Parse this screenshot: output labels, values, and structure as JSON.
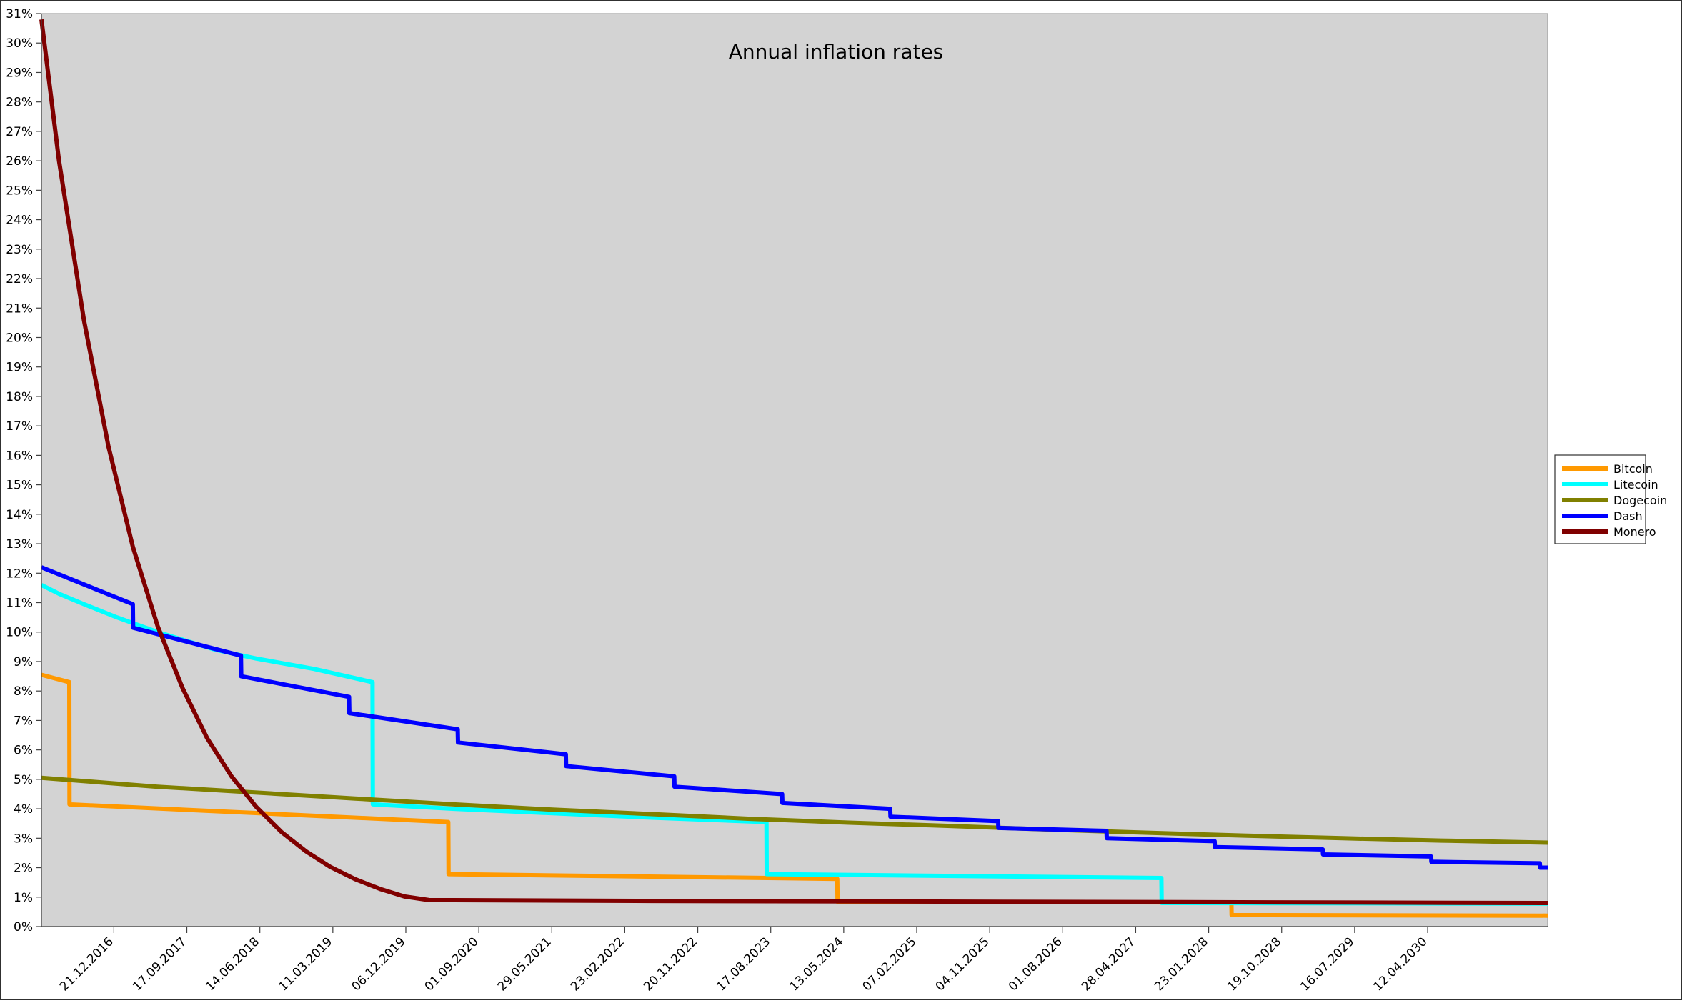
{
  "chart_data": {
    "type": "line",
    "title": "Annual inflation rates",
    "xlabel": "",
    "ylabel": "",
    "x_axis_type": "date",
    "x_range": [
      "2016-03-28",
      "2031-06-30"
    ],
    "ylim": [
      0,
      31
    ],
    "y_ticks": [
      0,
      1,
      2,
      3,
      4,
      5,
      6,
      7,
      8,
      9,
      10,
      11,
      12,
      13,
      14,
      15,
      16,
      17,
      18,
      19,
      20,
      21,
      22,
      23,
      24,
      25,
      26,
      27,
      28,
      29,
      30,
      31
    ],
    "y_tick_suffix": "%",
    "x_ticks": [
      {
        "date": "2016-12-21",
        "label": "21.12.2016"
      },
      {
        "date": "2017-09-17",
        "label": "17.09.2017"
      },
      {
        "date": "2018-06-14",
        "label": "14.06.2018"
      },
      {
        "date": "2019-03-11",
        "label": "11.03.2019"
      },
      {
        "date": "2019-12-06",
        "label": "06.12.2019"
      },
      {
        "date": "2020-09-01",
        "label": "01.09.2020"
      },
      {
        "date": "2021-05-29",
        "label": "29.05.2021"
      },
      {
        "date": "2022-02-23",
        "label": "23.02.2022"
      },
      {
        "date": "2022-11-20",
        "label": "20.11.2022"
      },
      {
        "date": "2023-08-17",
        "label": "17.08.2023"
      },
      {
        "date": "2024-05-13",
        "label": "13.05.2024"
      },
      {
        "date": "2025-02-07",
        "label": "07.02.2025"
      },
      {
        "date": "2025-11-04",
        "label": "04.11.2025"
      },
      {
        "date": "2026-08-01",
        "label": "01.08.2026"
      },
      {
        "date": "2027-04-28",
        "label": "28.04.2027"
      },
      {
        "date": "2028-01-23",
        "label": "23.01.2028"
      },
      {
        "date": "2028-10-19",
        "label": "19.10.2028"
      },
      {
        "date": "2029-07-16",
        "label": "16.07.2029"
      },
      {
        "date": "2030-04-12",
        "label": "12.04.2030"
      }
    ],
    "grid": false,
    "legend_position": "right",
    "plot_background": "#d3d3d3",
    "series": [
      {
        "name": "Bitcoin",
        "color": "#ff9900",
        "points": [
          [
            "2016-03-28",
            8.55
          ],
          [
            "2016-07-09",
            8.3
          ],
          [
            "2016-07-10",
            4.15
          ],
          [
            "2020-05-11",
            3.55
          ],
          [
            "2020-05-12",
            1.78
          ],
          [
            "2024-04-19",
            1.62
          ],
          [
            "2024-04-20",
            0.84
          ],
          [
            "2028-04-16",
            0.82
          ],
          [
            "2028-04-17",
            0.39
          ],
          [
            "2031-06-30",
            0.37
          ]
        ]
      },
      {
        "name": "Litecoin",
        "color": "#00ffff",
        "points": [
          [
            "2016-03-28",
            11.6
          ],
          [
            "2016-06-01",
            11.3
          ],
          [
            "2016-09-01",
            10.95
          ],
          [
            "2017-01-01",
            10.5
          ],
          [
            "2017-06-01",
            10.0
          ],
          [
            "2018-01-01",
            9.4
          ],
          [
            "2018-06-01",
            9.1
          ],
          [
            "2019-01-01",
            8.75
          ],
          [
            "2019-08-05",
            8.3
          ],
          [
            "2019-08-06",
            4.15
          ],
          [
            "2020-06-01",
            4.0
          ],
          [
            "2021-06-01",
            3.85
          ],
          [
            "2022-06-01",
            3.7
          ],
          [
            "2023-08-01",
            3.55
          ],
          [
            "2023-08-02",
            1.78
          ],
          [
            "2027-08-01",
            1.65
          ],
          [
            "2027-08-02",
            0.8
          ],
          [
            "2031-06-30",
            0.78
          ]
        ]
      },
      {
        "name": "Dogecoin",
        "color": "#808000",
        "points": [
          [
            "2016-03-28",
            5.05
          ],
          [
            "2017-06-01",
            4.75
          ],
          [
            "2018-06-01",
            4.55
          ],
          [
            "2019-06-01",
            4.35
          ],
          [
            "2020-06-01",
            4.15
          ],
          [
            "2021-06-01",
            3.97
          ],
          [
            "2022-06-01",
            3.82
          ],
          [
            "2023-06-01",
            3.66
          ],
          [
            "2024-06-01",
            3.53
          ],
          [
            "2025-06-01",
            3.42
          ],
          [
            "2026-06-01",
            3.3
          ],
          [
            "2027-06-01",
            3.19
          ],
          [
            "2028-06-01",
            3.09
          ],
          [
            "2029-06-01",
            3.0
          ],
          [
            "2030-06-01",
            2.92
          ],
          [
            "2031-06-30",
            2.85
          ]
        ]
      },
      {
        "name": "Dash",
        "color": "#0000ff",
        "points": [
          [
            "2016-03-28",
            12.2
          ],
          [
            "2017-03-01",
            10.95
          ],
          [
            "2017-03-02",
            10.15
          ],
          [
            "2018-04-05",
            9.2
          ],
          [
            "2018-04-06",
            8.5
          ],
          [
            "2019-05-10",
            7.8
          ],
          [
            "2019-05-11",
            7.25
          ],
          [
            "2020-06-15",
            6.7
          ],
          [
            "2020-06-16",
            6.25
          ],
          [
            "2021-07-20",
            5.85
          ],
          [
            "2021-07-21",
            5.45
          ],
          [
            "2022-08-25",
            5.1
          ],
          [
            "2022-08-26",
            4.75
          ],
          [
            "2023-09-28",
            4.5
          ],
          [
            "2023-09-29",
            4.2
          ],
          [
            "2024-11-01",
            4.0
          ],
          [
            "2024-11-02",
            3.73
          ],
          [
            "2025-12-05",
            3.58
          ],
          [
            "2025-12-06",
            3.35
          ],
          [
            "2027-01-10",
            3.25
          ],
          [
            "2027-01-11",
            3.0
          ],
          [
            "2028-02-14",
            2.9
          ],
          [
            "2028-02-15",
            2.7
          ],
          [
            "2029-03-20",
            2.62
          ],
          [
            "2029-03-21",
            2.45
          ],
          [
            "2030-04-25",
            2.38
          ],
          [
            "2030-04-26",
            2.2
          ],
          [
            "2031-06-01",
            2.15
          ],
          [
            "2031-06-02",
            2.0
          ],
          [
            "2031-06-30",
            2.0
          ]
        ]
      },
      {
        "name": "Monero",
        "color": "#800000",
        "points": [
          [
            "2016-03-28",
            30.8
          ],
          [
            "2016-06-01",
            26.0
          ],
          [
            "2016-09-01",
            20.6
          ],
          [
            "2016-12-01",
            16.3
          ],
          [
            "2017-03-01",
            12.9
          ],
          [
            "2017-06-01",
            10.2
          ],
          [
            "2017-09-01",
            8.1
          ],
          [
            "2017-12-01",
            6.4
          ],
          [
            "2018-03-01",
            5.1
          ],
          [
            "2018-06-01",
            4.06
          ],
          [
            "2018-09-01",
            3.22
          ],
          [
            "2018-12-01",
            2.56
          ],
          [
            "2019-03-01",
            2.03
          ],
          [
            "2019-06-01",
            1.61
          ],
          [
            "2019-09-01",
            1.28
          ],
          [
            "2019-12-01",
            1.02
          ],
          [
            "2020-03-01",
            0.9
          ],
          [
            "2022-06-01",
            0.87
          ],
          [
            "2031-06-30",
            0.8
          ]
        ]
      }
    ]
  }
}
